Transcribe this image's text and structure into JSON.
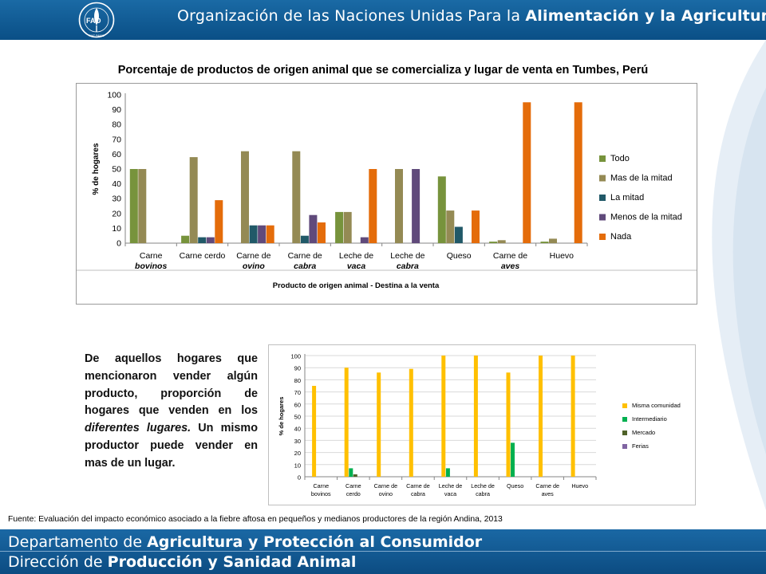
{
  "header": {
    "org_prefix": "Organización de las Naciones Unidas Para la ",
    "org_emphasis": "Alimentación y la Agricultura",
    "logo_text": "FAO",
    "logo_motto": "FIAT PANIS"
  },
  "page_title": "Porcentaje de productos de origen animal que se comercializa y lugar de venta en Tumbes, Perú",
  "description": {
    "part1": "De aquellos hogares que mencionaron vender algún producto, proporción de hogares que venden en los ",
    "italic": "diferentes lugares.",
    "part2": " Un mismo productor puede vender en mas de un lugar."
  },
  "source": "Fuente: Evaluación del impacto económico asociado a la fiebre aftosa en pequeños y medianos productores de la región Andina, 2013",
  "footer": {
    "line1_prefix": "Departamento de ",
    "line1_emphasis": "Agricultura y Protección al Consumidor",
    "line2_prefix": "Dirección de ",
    "line2_emphasis": "Producción y Sanidad Animal"
  },
  "chart_data": [
    {
      "type": "bar",
      "categories": [
        [
          "Carne",
          "bovinos"
        ],
        [
          "Carne cerdo"
        ],
        [
          "Carne de",
          "ovino"
        ],
        [
          "Carne de",
          "cabra"
        ],
        [
          "Leche de",
          "vaca"
        ],
        [
          "Leche de",
          "cabra"
        ],
        [
          "Queso"
        ],
        [
          "Carne de",
          "aves"
        ],
        [
          "Huevo"
        ]
      ],
      "xlabel": "Producto de origen animal - Destina a la venta",
      "ylabel": "% de hogares",
      "ylim": [
        0,
        100
      ],
      "yticks": [
        0,
        10,
        20,
        30,
        40,
        50,
        60,
        70,
        80,
        90,
        100
      ],
      "grid": false,
      "legend_position": "right",
      "series": [
        {
          "name": "Todo",
          "color": "#77933c",
          "values": [
            50,
            5,
            0,
            0,
            21,
            0,
            45,
            1,
            1
          ]
        },
        {
          "name": "Mas de la mitad",
          "color": "#948a54",
          "values": [
            50,
            58,
            62,
            62,
            21,
            50,
            22,
            2,
            3
          ]
        },
        {
          "name": "La mitad",
          "color": "#215968",
          "values": [
            0,
            4,
            12,
            5,
            0,
            0,
            11,
            0,
            0
          ]
        },
        {
          "name": "Menos de la mitad",
          "color": "#604a7b",
          "values": [
            0,
            4,
            12,
            19,
            4,
            50,
            0,
            0,
            0
          ]
        },
        {
          "name": "Nada",
          "color": "#e46c0a",
          "values": [
            0,
            29,
            12,
            14,
            50,
            0,
            22,
            95,
            95
          ]
        }
      ]
    },
    {
      "type": "bar",
      "categories": [
        [
          "Carne",
          "bovinos"
        ],
        [
          "Carne",
          "cerdo"
        ],
        [
          "Carne de",
          "ovino"
        ],
        [
          "Carne de",
          "cabra"
        ],
        [
          "Leche de",
          "vaca"
        ],
        [
          "Leche de",
          "cabra"
        ],
        [
          "Queso"
        ],
        [
          "Carne de",
          "aves"
        ],
        [
          "Huevo"
        ]
      ],
      "ylabel": "% de hogares",
      "ylim": [
        0,
        100
      ],
      "yticks": [
        0,
        10,
        20,
        30,
        40,
        50,
        60,
        70,
        80,
        90,
        100
      ],
      "grid": true,
      "legend_position": "right",
      "series": [
        {
          "name": "Misma comunidad",
          "color": "#ffc000",
          "values": [
            75,
            90,
            86,
            89,
            100,
            100,
            86,
            100,
            100
          ]
        },
        {
          "name": "Intermediario",
          "color": "#00b050",
          "values": [
            0,
            7,
            0,
            0,
            7,
            0,
            28,
            0,
            0
          ]
        },
        {
          "name": "Mercado",
          "color": "#4f6228",
          "values": [
            0,
            2,
            0,
            0,
            0,
            0,
            0,
            0,
            0
          ]
        },
        {
          "name": "Ferias",
          "color": "#8064a2",
          "values": [
            0,
            0,
            0,
            0,
            0,
            0,
            0,
            0,
            0
          ]
        }
      ]
    }
  ]
}
